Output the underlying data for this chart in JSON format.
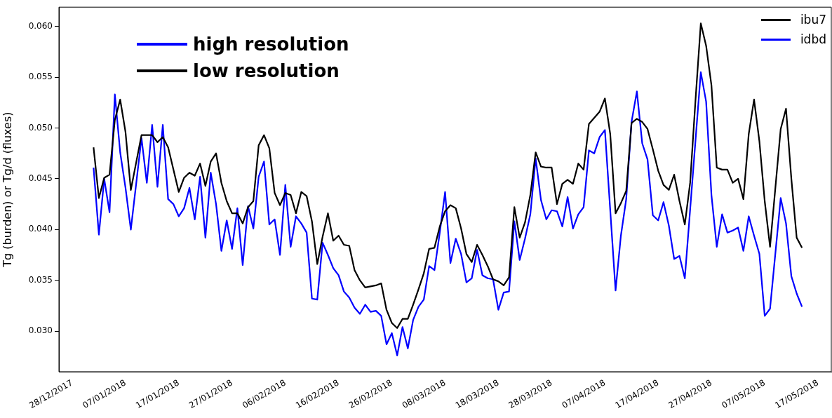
{
  "chart_data": {
    "type": "line",
    "ylabel": "Tg (burden) or Tg/d (fluxes)",
    "annotations": [
      "high resolution",
      "low resolution"
    ],
    "legend": "top right",
    "xlim": [
      "2017-12-25T12:00",
      "2018-05-19T12:00"
    ],
    "ylim": [
      0.026,
      0.0619
    ],
    "xticks": [
      {
        "value": "2017-12-28",
        "label": "28/12/2017"
      },
      {
        "value": "2018-01-07",
        "label": "07/01/2018"
      },
      {
        "value": "2018-01-17",
        "label": "17/01/2018"
      },
      {
        "value": "2018-01-27",
        "label": "27/01/2018"
      },
      {
        "value": "2018-02-06",
        "label": "06/02/2018"
      },
      {
        "value": "2018-02-16",
        "label": "16/02/2018"
      },
      {
        "value": "2018-02-26",
        "label": "26/02/2018"
      },
      {
        "value": "2018-03-08",
        "label": "08/03/2018"
      },
      {
        "value": "2018-03-18",
        "label": "18/03/2018"
      },
      {
        "value": "2018-03-28",
        "label": "28/03/2018"
      },
      {
        "value": "2018-04-07",
        "label": "07/04/2018"
      },
      {
        "value": "2018-04-17",
        "label": "17/04/2018"
      },
      {
        "value": "2018-04-27",
        "label": "27/04/2018"
      },
      {
        "value": "2018-05-07",
        "label": "07/05/2018"
      },
      {
        "value": "2018-05-17",
        "label": "17/05/2018"
      }
    ],
    "yticks": [
      {
        "value": 0.03,
        "label": "0.030"
      },
      {
        "value": 0.035,
        "label": "0.035"
      },
      {
        "value": 0.04,
        "label": "0.040"
      },
      {
        "value": 0.045,
        "label": "0.045"
      },
      {
        "value": 0.05,
        "label": "0.050"
      },
      {
        "value": 0.055,
        "label": "0.055"
      },
      {
        "value": 0.06,
        "label": "0.060"
      }
    ],
    "series": [
      {
        "name": "ibu7",
        "color": "#000000",
        "x": [
          "2018-01-01",
          "2018-01-02",
          "2018-01-03",
          "2018-01-04",
          "2018-01-05",
          "2018-01-06",
          "2018-01-07",
          "2018-01-08",
          "2018-01-10",
          "2018-01-12",
          "2018-01-13",
          "2018-01-14",
          "2018-01-15",
          "2018-01-17",
          "2018-01-18",
          "2018-01-19",
          "2018-01-20",
          "2018-01-21",
          "2018-01-22",
          "2018-01-23",
          "2018-01-24",
          "2018-01-25",
          "2018-01-26",
          "2018-01-27",
          "2018-01-28",
          "2018-01-29",
          "2018-01-30",
          "2018-01-31",
          "2018-02-01",
          "2018-02-02",
          "2018-02-03",
          "2018-02-04",
          "2018-02-05",
          "2018-02-06",
          "2018-02-07",
          "2018-02-08",
          "2018-02-09",
          "2018-02-10",
          "2018-02-11",
          "2018-02-12",
          "2018-02-13",
          "2018-02-14",
          "2018-02-15",
          "2018-02-16",
          "2018-02-17",
          "2018-02-18",
          "2018-02-19",
          "2018-02-20",
          "2018-02-21",
          "2018-02-22",
          "2018-02-23",
          "2018-02-24",
          "2018-02-25",
          "2018-02-26",
          "2018-02-27",
          "2018-02-28",
          "2018-03-01",
          "2018-03-02",
          "2018-03-03",
          "2018-03-04",
          "2018-03-05",
          "2018-03-06",
          "2018-03-07",
          "2018-03-08",
          "2018-03-09",
          "2018-03-10",
          "2018-03-11",
          "2018-03-12",
          "2018-03-13",
          "2018-03-14",
          "2018-03-15",
          "2018-03-16",
          "2018-03-17",
          "2018-03-18",
          "2018-03-19",
          "2018-03-20",
          "2018-03-21",
          "2018-03-22",
          "2018-03-23",
          "2018-03-24",
          "2018-03-25",
          "2018-03-26",
          "2018-03-27",
          "2018-03-28",
          "2018-03-29",
          "2018-03-30",
          "2018-03-31",
          "2018-04-01",
          "2018-04-02",
          "2018-04-03",
          "2018-04-04",
          "2018-04-05",
          "2018-04-06",
          "2018-04-07",
          "2018-04-08",
          "2018-04-09",
          "2018-04-10",
          "2018-04-11",
          "2018-04-12",
          "2018-04-13",
          "2018-04-14",
          "2018-04-15",
          "2018-04-16",
          "2018-04-17",
          "2018-04-18",
          "2018-04-19",
          "2018-04-20",
          "2018-04-21",
          "2018-04-22",
          "2018-04-23",
          "2018-04-24",
          "2018-04-25",
          "2018-04-26",
          "2018-04-27",
          "2018-04-28",
          "2018-04-29",
          "2018-04-30",
          "2018-05-01",
          "2018-05-02",
          "2018-05-03",
          "2018-05-04",
          "2018-05-05",
          "2018-05-06",
          "2018-05-07",
          "2018-05-08",
          "2018-05-10",
          "2018-05-11",
          "2018-05-12",
          "2018-05-13",
          "2018-05-14"
        ],
        "values": [
          0.0481,
          0.0431,
          0.0451,
          0.0454,
          0.0508,
          0.0528,
          0.0496,
          0.0439,
          0.0493,
          0.0493,
          0.0486,
          0.0491,
          0.0481,
          0.0437,
          0.0451,
          0.0456,
          0.0453,
          0.0465,
          0.0443,
          0.0467,
          0.0475,
          0.0446,
          0.0428,
          0.0416,
          0.0416,
          0.0406,
          0.0422,
          0.0428,
          0.0483,
          0.0493,
          0.048,
          0.0436,
          0.0424,
          0.0436,
          0.0434,
          0.0416,
          0.0437,
          0.0433,
          0.0408,
          0.0366,
          0.0393,
          0.0416,
          0.0389,
          0.0394,
          0.0385,
          0.0384,
          0.036,
          0.035,
          0.0343,
          0.0344,
          0.0345,
          0.0347,
          0.0321,
          0.0308,
          0.0303,
          0.0312,
          0.0312,
          0.0326,
          0.0341,
          0.0357,
          0.0381,
          0.0382,
          0.0403,
          0.0418,
          0.0424,
          0.0421,
          0.0401,
          0.0376,
          0.0368,
          0.0385,
          0.0375,
          0.0364,
          0.0351,
          0.0349,
          0.0345,
          0.0353,
          0.0422,
          0.0392,
          0.0407,
          0.0434,
          0.0476,
          0.0462,
          0.0461,
          0.0461,
          0.0425,
          0.0445,
          0.0449,
          0.0445,
          0.0465,
          0.0459,
          0.0504,
          0.051,
          0.0516,
          0.0529,
          0.0494,
          0.0416,
          0.0426,
          0.0438,
          0.0505,
          0.0509,
          0.0506,
          0.0499,
          0.0479,
          0.0458,
          0.0444,
          0.0439,
          0.0454,
          0.0428,
          0.0405,
          0.0446,
          0.0527,
          0.0603,
          0.0581,
          0.0542,
          0.0461,
          0.0459,
          0.0459,
          0.0446,
          0.045,
          0.043,
          0.0494,
          0.0528,
          0.0487,
          0.0428,
          0.0383,
          0.0499,
          0.0519,
          0.045,
          0.0392,
          0.0382
        ]
      },
      {
        "name": "idbd",
        "color": "#0000ff",
        "x": [
          "2018-01-01",
          "2018-01-02",
          "2018-01-03",
          "2018-01-04",
          "2018-01-05",
          "2018-01-06",
          "2018-01-07",
          "2018-01-08",
          "2018-01-10",
          "2018-01-11",
          "2018-01-12",
          "2018-01-13",
          "2018-01-14",
          "2018-01-15",
          "2018-01-16",
          "2018-01-17",
          "2018-01-18",
          "2018-01-19",
          "2018-01-20",
          "2018-01-21",
          "2018-01-22",
          "2018-01-23",
          "2018-01-24",
          "2018-01-25",
          "2018-01-26",
          "2018-01-27",
          "2018-01-28",
          "2018-01-29",
          "2018-01-30",
          "2018-01-31",
          "2018-02-01",
          "2018-02-02",
          "2018-02-03",
          "2018-02-04",
          "2018-02-05",
          "2018-02-06",
          "2018-02-07",
          "2018-02-08",
          "2018-02-09",
          "2018-02-10",
          "2018-02-11",
          "2018-02-12",
          "2018-02-13",
          "2018-02-14",
          "2018-02-15",
          "2018-02-16",
          "2018-02-17",
          "2018-02-18",
          "2018-02-19",
          "2018-02-20",
          "2018-02-21",
          "2018-02-22",
          "2018-02-23",
          "2018-02-24",
          "2018-02-25",
          "2018-02-26",
          "2018-02-27",
          "2018-02-28",
          "2018-03-01",
          "2018-03-02",
          "2018-03-03",
          "2018-03-04",
          "2018-03-05",
          "2018-03-06",
          "2018-03-07",
          "2018-03-08",
          "2018-03-09",
          "2018-03-10",
          "2018-03-11",
          "2018-03-12",
          "2018-03-13",
          "2018-03-14",
          "2018-03-15",
          "2018-03-16",
          "2018-03-17",
          "2018-03-18",
          "2018-03-19",
          "2018-03-20",
          "2018-03-21",
          "2018-03-22",
          "2018-03-23",
          "2018-03-24",
          "2018-03-25",
          "2018-03-26",
          "2018-03-27",
          "2018-03-28",
          "2018-03-29",
          "2018-03-30",
          "2018-03-31",
          "2018-04-01",
          "2018-04-02",
          "2018-04-03",
          "2018-04-04",
          "2018-04-05",
          "2018-04-06",
          "2018-04-07",
          "2018-04-09",
          "2018-04-10",
          "2018-04-11",
          "2018-04-12",
          "2018-04-13",
          "2018-04-14",
          "2018-04-15",
          "2018-04-16",
          "2018-04-17",
          "2018-04-18",
          "2018-04-19",
          "2018-04-20",
          "2018-04-21",
          "2018-04-22",
          "2018-04-25",
          "2018-04-26",
          "2018-04-27",
          "2018-04-28",
          "2018-04-29",
          "2018-04-30",
          "2018-05-01",
          "2018-05-02",
          "2018-05-03",
          "2018-05-04",
          "2018-05-05",
          "2018-05-06",
          "2018-05-07",
          "2018-05-08",
          "2018-05-10",
          "2018-05-11",
          "2018-05-12",
          "2018-05-13",
          "2018-05-14"
        ],
        "values": [
          0.0461,
          0.0395,
          0.045,
          0.0417,
          0.0533,
          0.0476,
          0.0441,
          0.04,
          0.049,
          0.0446,
          0.0503,
          0.0442,
          0.0503,
          0.043,
          0.0425,
          0.0413,
          0.0421,
          0.0441,
          0.041,
          0.0452,
          0.0392,
          0.0456,
          0.0425,
          0.0379,
          0.0409,
          0.0381,
          0.0421,
          0.0365,
          0.0423,
          0.0401,
          0.0452,
          0.0467,
          0.0405,
          0.041,
          0.0375,
          0.0444,
          0.0383,
          0.0413,
          0.0406,
          0.0397,
          0.0332,
          0.0331,
          0.0387,
          0.0375,
          0.0362,
          0.0355,
          0.0339,
          0.0333,
          0.0323,
          0.0317,
          0.0326,
          0.0319,
          0.032,
          0.0315,
          0.0287,
          0.0298,
          0.0276,
          0.0304,
          0.0283,
          0.0311,
          0.0324,
          0.0331,
          0.0364,
          0.036,
          0.0397,
          0.0437,
          0.0367,
          0.0391,
          0.0376,
          0.0348,
          0.0352,
          0.038,
          0.0355,
          0.0352,
          0.0351,
          0.0321,
          0.0338,
          0.0339,
          0.0408,
          0.037,
          0.0391,
          0.0415,
          0.047,
          0.0429,
          0.041,
          0.0419,
          0.0418,
          0.0403,
          0.0432,
          0.0401,
          0.0415,
          0.0422,
          0.0478,
          0.0475,
          0.0491,
          0.0498,
          0.034,
          0.0394,
          0.043,
          0.0506,
          0.0536,
          0.0485,
          0.0469,
          0.0414,
          0.0409,
          0.0427,
          0.0404,
          0.0371,
          0.0374,
          0.0352,
          0.0555,
          0.0526,
          0.0434,
          0.0383,
          0.0415,
          0.0397,
          0.0399,
          0.0402,
          0.0379,
          0.0413,
          0.0394,
          0.0376,
          0.0315,
          0.0322,
          0.0431,
          0.0406,
          0.0354,
          0.0337,
          0.0324
        ]
      }
    ]
  }
}
